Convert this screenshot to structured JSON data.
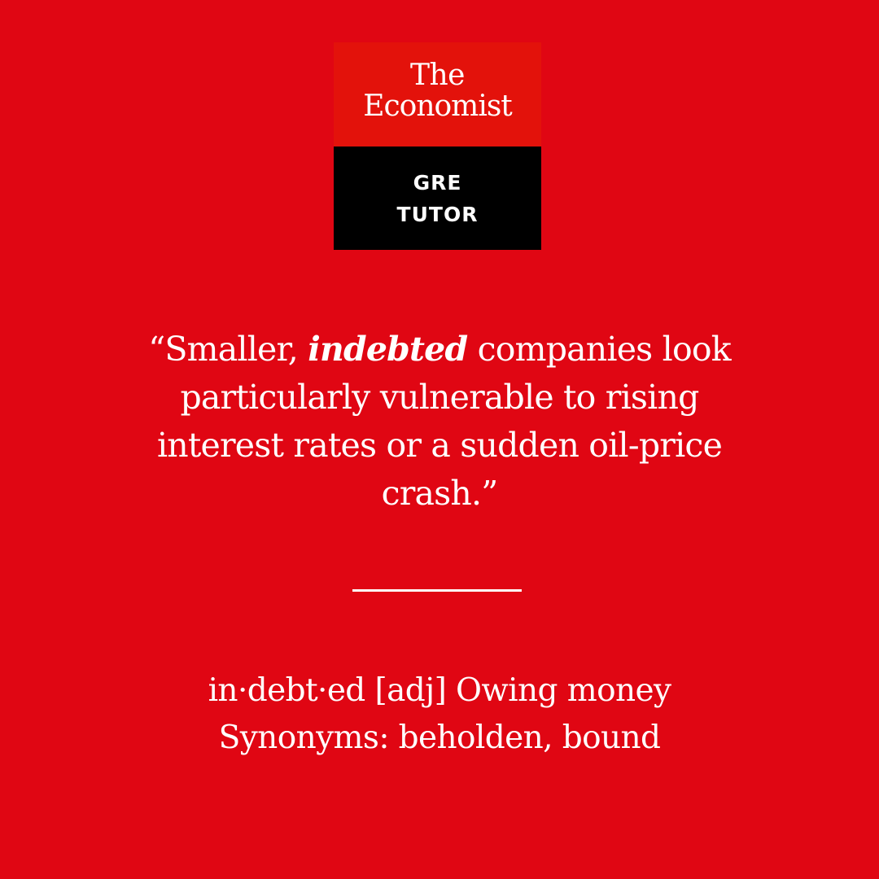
{
  "logo": {
    "brand_line1": "The",
    "brand_line2": "Economist",
    "sub_line1": "GRE",
    "sub_line2": "TUTOR"
  },
  "quote": {
    "open_quote": "“",
    "line1_pre": "Smaller, ",
    "keyword": "indebted",
    "line1_post": " companies look",
    "line2": "particularly vulnerable to rising",
    "line3": "interest rates or a sudden oil-price",
    "line4": "crash.”"
  },
  "definition": {
    "line1": "in·debt·ed [adj] Owing money",
    "line2": "Synonyms: beholden, bound"
  },
  "colors": {
    "background": "#e00613",
    "logo_top": "#e3120b",
    "logo_bottom": "#000000",
    "text": "#ffffff"
  }
}
